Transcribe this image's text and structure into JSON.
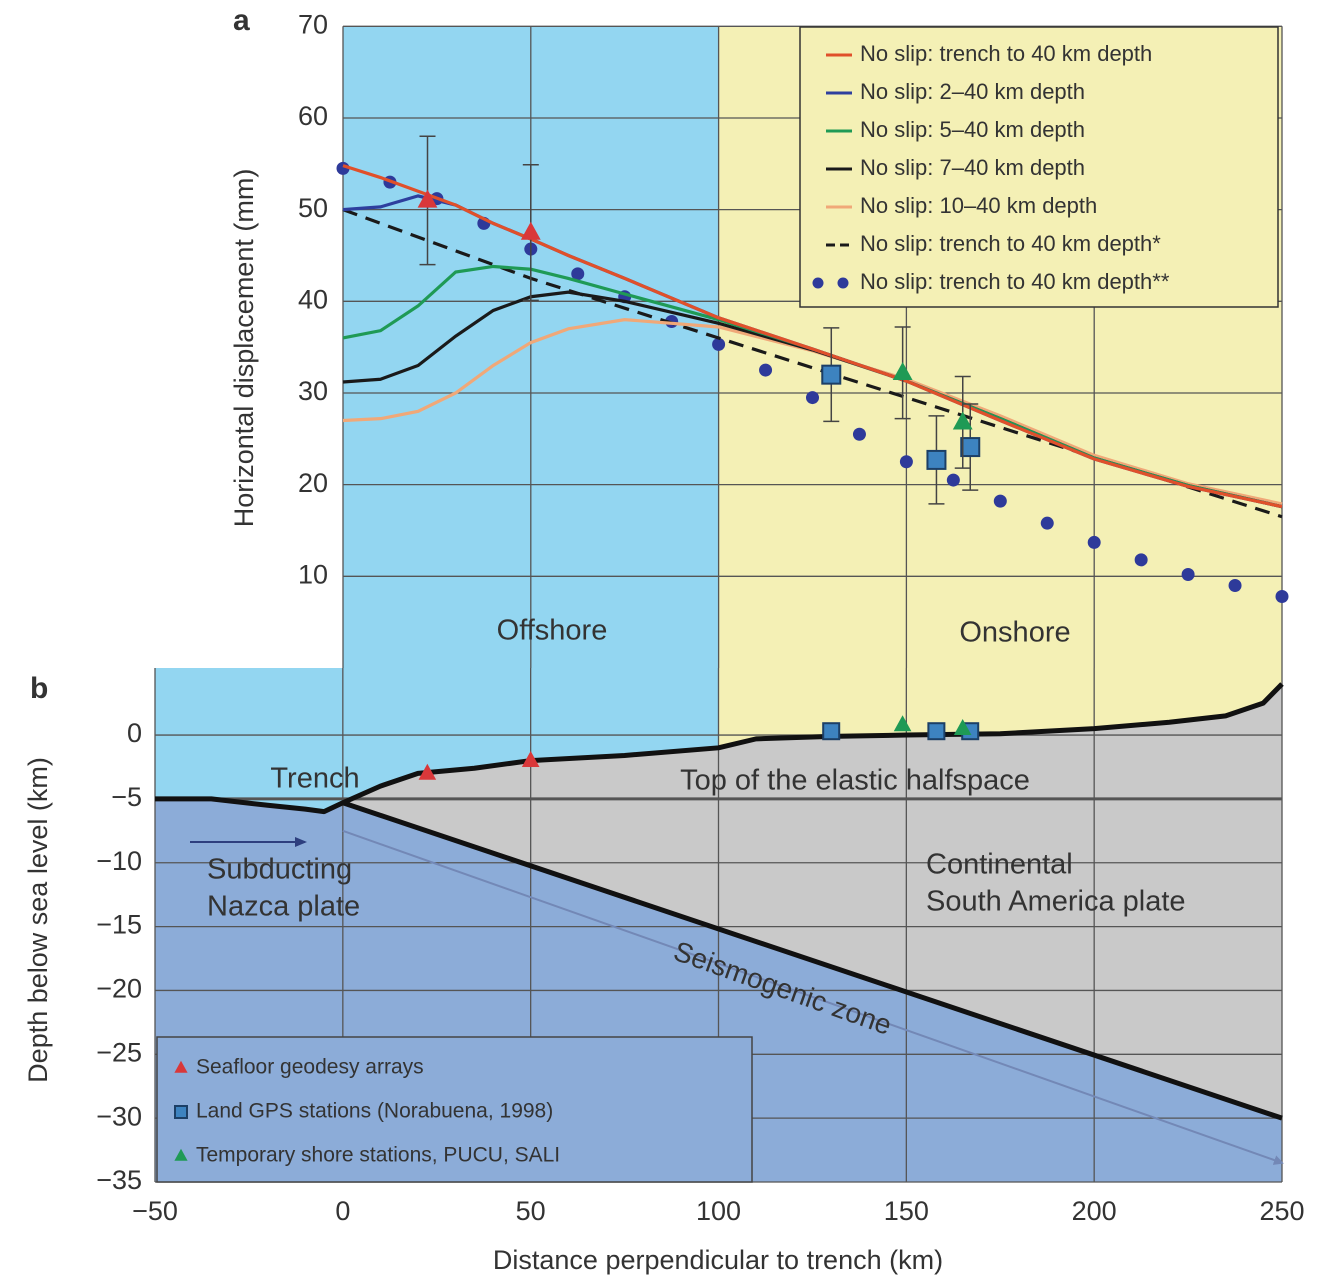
{
  "chart_data": [
    {
      "type": "line",
      "panel_label": "a",
      "ylabel": "Horizontal displacement (mm)",
      "xlim": [
        0,
        250
      ],
      "ylim": [
        0,
        70
      ],
      "yticks": [
        10,
        20,
        30,
        40,
        50,
        60,
        70
      ],
      "grid": true,
      "legend": "upper right",
      "regions": [
        {
          "name": "Offshore",
          "xlim": [
            0,
            100
          ],
          "color": "#93d6f1"
        },
        {
          "name": "Onshore",
          "xlim": [
            100,
            250
          ],
          "color": "#f4f0b5"
        }
      ],
      "series": [
        {
          "name": "No slip: trench to 40 km depth",
          "color": "#e0502a",
          "style": "solid",
          "x": [
            0,
            10,
            20,
            30,
            40,
            50,
            60,
            75,
            100,
            125,
            150,
            175,
            200,
            225,
            250
          ],
          "values": [
            54.8,
            53.5,
            52,
            50.5,
            48.5,
            46.8,
            45,
            42.5,
            38.2,
            34.8,
            31.3,
            27,
            22.8,
            19.8,
            17.6
          ]
        },
        {
          "name": "No slip: 2–40 km depth",
          "color": "#2e3f9e",
          "style": "solid",
          "x": [
            0,
            10,
            20,
            30,
            40,
            50,
            60,
            75,
            100,
            125,
            150,
            175,
            200,
            225,
            250
          ],
          "values": [
            50,
            50.3,
            51.5,
            50.5,
            48.5,
            46.8,
            45,
            42.5,
            38.2,
            34.8,
            31.3,
            27,
            22.8,
            19.8,
            17.6
          ]
        },
        {
          "name": "No slip: 5–40 km depth",
          "color": "#1f9a55",
          "style": "solid",
          "x": [
            0,
            10,
            20,
            30,
            40,
            50,
            60,
            75,
            100,
            125,
            150,
            175,
            200,
            225,
            250
          ],
          "values": [
            36,
            36.8,
            39.5,
            43.2,
            43.8,
            43.5,
            42.5,
            40.8,
            38,
            34.8,
            31.3,
            27.2,
            22.9,
            19.9,
            17.6
          ]
        },
        {
          "name": "No slip: 7–40 km depth",
          "color": "#1a1a1a",
          "style": "solid",
          "x": [
            0,
            10,
            20,
            30,
            40,
            50,
            60,
            75,
            100,
            125,
            150,
            175,
            200,
            225,
            250
          ],
          "values": [
            31.2,
            31.5,
            33,
            36.2,
            39,
            40.5,
            41,
            40,
            37.6,
            34.7,
            31.3,
            27.2,
            22.9,
            19.9,
            17.6
          ]
        },
        {
          "name": "No slip: 10–40 km depth",
          "color": "#f0a878",
          "style": "solid",
          "x": [
            0,
            10,
            20,
            30,
            40,
            50,
            60,
            75,
            100,
            125,
            150,
            175,
            200,
            225,
            250
          ],
          "values": [
            27,
            27.2,
            28,
            30,
            33,
            35.5,
            37,
            38,
            37.2,
            34.6,
            31.5,
            27.5,
            23.2,
            20.1,
            17.9
          ]
        },
        {
          "name": "No slip: trench to 40 km depth*",
          "color": "#1a1a1a",
          "style": "dashed",
          "x": [
            0,
            50,
            100,
            150,
            200,
            250
          ],
          "values": [
            50,
            42.5,
            36,
            29.5,
            23,
            16.5
          ]
        },
        {
          "name": "No slip: trench to 40 km depth**",
          "color": "#2e3a9a",
          "style": "dots",
          "x": [
            0,
            12.5,
            25,
            37.5,
            50,
            62.5,
            75,
            87.5,
            100,
            112.5,
            125,
            137.5,
            150,
            162.5,
            175,
            187.5,
            200,
            212.5,
            225,
            237.5,
            250
          ],
          "values": [
            54.5,
            53,
            51.2,
            48.5,
            45.7,
            43,
            40.5,
            37.8,
            35.3,
            32.5,
            29.5,
            25.5,
            22.5,
            20.5,
            18.2,
            15.8,
            13.7,
            11.8,
            10.2,
            9,
            7.8
          ]
        }
      ],
      "points": [
        {
          "marker": "triangle",
          "color": "#d9383a",
          "x": [
            22.5,
            50
          ],
          "values": [
            51,
            47.5
          ],
          "errors": [
            7,
            7.4
          ]
        },
        {
          "marker": "square",
          "color": "#3d83c0",
          "x": [
            130,
            158,
            167
          ],
          "values": [
            32,
            22.7,
            24.1
          ],
          "errors": [
            5.1,
            4.8,
            4.7
          ]
        },
        {
          "marker": "triangle",
          "color": "#1f9a55",
          "x": [
            149,
            165
          ],
          "values": [
            32.2,
            26.8
          ],
          "errors": [
            5,
            5
          ]
        }
      ]
    },
    {
      "type": "line",
      "panel_label": "b",
      "xlabel": "Distance perpendicular to trench (km)",
      "ylabel": "Depth below sea level (km)",
      "xlim": [
        -50,
        250
      ],
      "ylim": [
        -35,
        5.25
      ],
      "xticks": [
        {
          "value": -50,
          "label": "−50"
        },
        0,
        50,
        100,
        150,
        200,
        250
      ],
      "yticks": [
        0,
        {
          "value": -5,
          "label": "−5"
        },
        {
          "value": -10,
          "label": "−10"
        },
        {
          "value": -15,
          "label": "−15"
        },
        {
          "value": -20,
          "label": "−20"
        },
        {
          "value": -25,
          "label": "−25"
        },
        {
          "value": -30,
          "label": "−30"
        },
        {
          "value": -35,
          "label": "−35"
        }
      ],
      "grid": true,
      "legend": "lower left",
      "plate_color": "#8cacd8",
      "crust_color": "#c9c9c9",
      "trench_label": "Trench",
      "plate_labels": [
        [
          "Subducting",
          "Nazca plate"
        ],
        [
          "Continental",
          "South America plate"
        ]
      ],
      "seafloor": {
        "color": "#111111",
        "x": [
          -50,
          -35,
          -20,
          -10,
          -5,
          0,
          10,
          20,
          35,
          50,
          75,
          100,
          110,
          130,
          150,
          175,
          200,
          220,
          235,
          245,
          250
        ],
        "values": [
          -5,
          -5,
          -5.5,
          -5.8,
          -6,
          -5.3,
          -4,
          -3,
          -2.6,
          -2,
          -1.6,
          -1,
          -0.3,
          -0.1,
          0,
          0.1,
          0.5,
          1,
          1.5,
          2.5,
          4
        ]
      },
      "slab": {
        "color": "#111111",
        "x": [
          0,
          250
        ],
        "values": [
          -5.3,
          -30
        ]
      },
      "halfspace": {
        "label": "Top of the elastic halfspace",
        "color": "#555555",
        "x": [
          -50,
          250
        ],
        "values": [
          -5,
          -5
        ]
      },
      "seismogenic": {
        "label": "Seismogenic zone",
        "color": "#7388b6",
        "x": [
          0,
          250
        ],
        "values": [
          -7.5,
          -33.5
        ]
      },
      "series": [
        {
          "name": "Seafloor geodesy arrays",
          "marker": "triangle",
          "color": "#d9383a",
          "x": [
            22.5,
            50
          ],
          "values": [
            -3,
            -2
          ]
        },
        {
          "name": "Land GPS stations (Norabuena, 1998)",
          "marker": "square",
          "color": "#3d83c0",
          "x": [
            130,
            158,
            167
          ],
          "values": [
            0.3,
            0.3,
            0.3
          ]
        },
        {
          "name": "Temporary shore stations, PUCU, SALI",
          "marker": "triangle",
          "color": "#1f9a55",
          "x": [
            149,
            165
          ],
          "values": [
            0.8,
            0.5
          ]
        }
      ]
    }
  ]
}
